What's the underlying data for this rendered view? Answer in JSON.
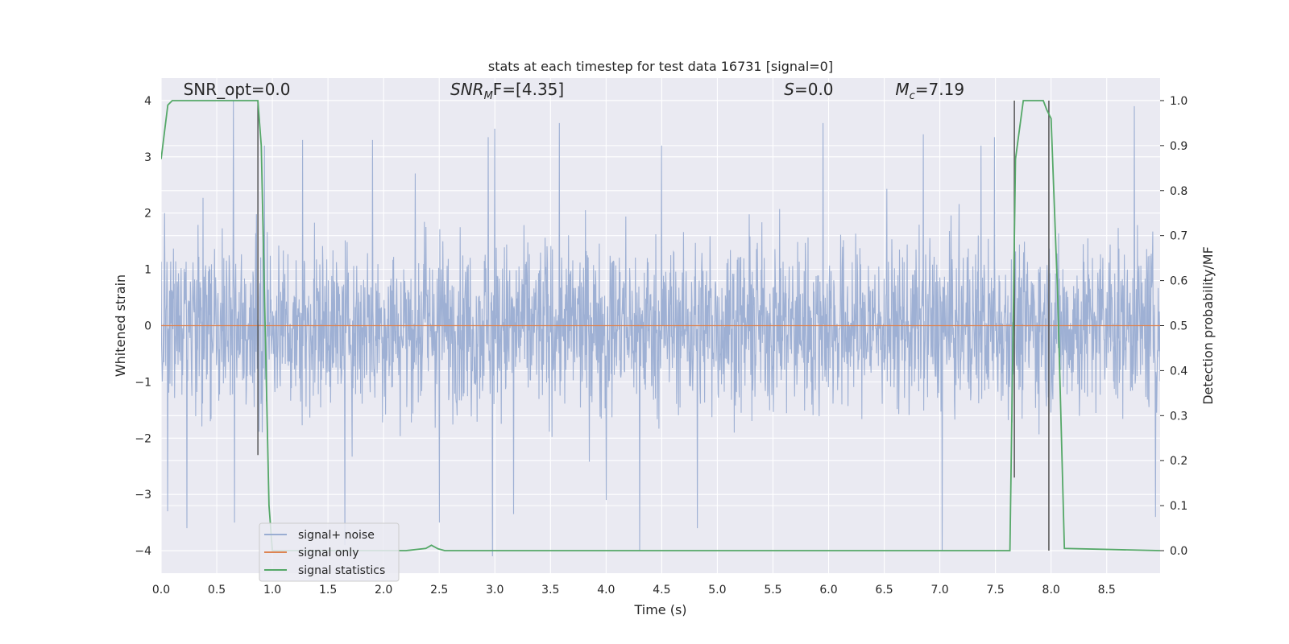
{
  "chart_data": {
    "type": "line",
    "title": "stats at each timestep for test data 16731 [signal=0]",
    "xlabel": "Time (s)",
    "ylabel": "Whitened strain",
    "y2label": "Detection probability/MF",
    "xlim": [
      0.0,
      8.98
    ],
    "ylim": [
      -4.4,
      4.4
    ],
    "y2lim": [
      -0.05,
      1.05
    ],
    "x_ticks": [
      0.0,
      0.5,
      1.0,
      1.5,
      2.0,
      2.5,
      3.0,
      3.5,
      4.0,
      4.5,
      5.0,
      5.5,
      6.0,
      6.5,
      7.0,
      7.5,
      8.0,
      8.5
    ],
    "x_tick_labels": [
      "0.0",
      "0.5",
      "1.0",
      "1.5",
      "2.0",
      "2.5",
      "3.0",
      "3.5",
      "4.0",
      "4.5",
      "5.0",
      "5.5",
      "6.0",
      "6.5",
      "7.0",
      "7.5",
      "8.0",
      "8.5"
    ],
    "y_ticks": [
      -4,
      -3,
      -2,
      -1,
      0,
      1,
      2,
      3,
      4
    ],
    "y_tick_labels": [
      "−4",
      "−3",
      "−2",
      "−1",
      "0",
      "1",
      "2",
      "3",
      "4"
    ],
    "y2_ticks": [
      0.0,
      0.1,
      0.2,
      0.3,
      0.4,
      0.5,
      0.6,
      0.7,
      0.8,
      0.9,
      1.0
    ],
    "y2_tick_labels": [
      "0.0",
      "0.1",
      "0.2",
      "0.3",
      "0.4",
      "0.5",
      "0.6",
      "0.7",
      "0.8",
      "0.9",
      "1.0"
    ],
    "grid": true,
    "legend_position": "bottom-left",
    "colors": {
      "background": "#eaeaf2",
      "grid": "#ffffff",
      "noise": "#9aadd2",
      "signal_only": "#dd8452",
      "statistics": "#55a868",
      "marker_lines": "#555555"
    },
    "series": [
      {
        "name": "signal+ noise",
        "kind": "noise",
        "x_range": [
          0.0,
          8.98
        ],
        "typical_envelope": [
          -2.6,
          2.6
        ],
        "peaks": [
          {
            "x": 0.65,
            "y": 4.0
          },
          {
            "x": 0.93,
            "y": 3.2
          },
          {
            "x": 1.27,
            "y": 3.3
          },
          {
            "x": 1.9,
            "y": 3.3
          },
          {
            "x": 2.94,
            "y": 3.35
          },
          {
            "x": 3.0,
            "y": 3.5
          },
          {
            "x": 3.58,
            "y": 3.6
          },
          {
            "x": 4.5,
            "y": 3.2
          },
          {
            "x": 5.95,
            "y": 3.6
          },
          {
            "x": 6.85,
            "y": 3.4
          },
          {
            "x": 7.37,
            "y": 3.2
          },
          {
            "x": 7.49,
            "y": 3.35
          },
          {
            "x": 8.75,
            "y": 3.9
          }
        ],
        "troughs": [
          {
            "x": 0.06,
            "y": -3.3
          },
          {
            "x": 0.23,
            "y": -3.6
          },
          {
            "x": 0.66,
            "y": -3.5
          },
          {
            "x": 1.65,
            "y": -3.9
          },
          {
            "x": 2.5,
            "y": -3.5
          },
          {
            "x": 2.98,
            "y": -4.1
          },
          {
            "x": 3.17,
            "y": -3.35
          },
          {
            "x": 4.0,
            "y": -3.1
          },
          {
            "x": 4.3,
            "y": -4.0
          },
          {
            "x": 4.82,
            "y": -3.6
          },
          {
            "x": 7.02,
            "y": -4.0
          },
          {
            "x": 8.94,
            "y": -3.4
          }
        ]
      },
      {
        "name": "signal only",
        "kind": "signal",
        "x": [
          0.0,
          8.98
        ],
        "y": [
          0.0,
          0.0
        ]
      },
      {
        "name": "signal statistics",
        "kind": "stat",
        "x": [
          0.0,
          0.06,
          0.1,
          0.15,
          0.3,
          0.6,
          0.87,
          0.9,
          0.97,
          1.0,
          1.05,
          2.2,
          2.38,
          2.43,
          2.49,
          2.55,
          7.0,
          7.63,
          7.68,
          7.75,
          7.93,
          7.96,
          8.0,
          8.06,
          8.12,
          8.98
        ],
        "y": [
          0.87,
          0.99,
          1.0,
          1.0,
          1.0,
          1.0,
          1.0,
          0.9,
          0.1,
          0.0,
          0.0,
          0.0,
          0.005,
          0.012,
          0.004,
          0.0,
          0.0,
          0.0,
          0.87,
          1.0,
          1.0,
          0.98,
          0.96,
          0.56,
          0.005,
          0.0
        ]
      }
    ],
    "vertical_lines": [
      {
        "x": 0.87,
        "ymin": -2.3,
        "ymax": 4.0
      },
      {
        "x": 7.67,
        "ymin": -2.7,
        "ymax": 4.0
      },
      {
        "x": 7.98,
        "ymin": -4.0,
        "ymax": 4.0
      }
    ],
    "annotations": [
      {
        "key": "snr_opt",
        "text": "SNR_opt=0.0",
        "x": 0.2,
        "y": 4.1
      },
      {
        "key": "snr_mf",
        "text": "SNR_MF=[4.35]",
        "x": 2.6,
        "y": 4.1
      },
      {
        "key": "s_value",
        "text": "S=0.0",
        "x": 5.6,
        "y": 4.1
      },
      {
        "key": "m_chirp",
        "text": "M_c=7.19",
        "x": 6.6,
        "y": 4.1
      }
    ]
  },
  "labels": {
    "snr_opt": "SNR_opt=0.0",
    "snr_mf_main": "SNR",
    "snr_mf_sub": "M",
    "snr_mf_rest": "F=[4.35]",
    "s_main": "S",
    "s_rest": "=0.0",
    "mc_main": "M",
    "mc_sub": "c",
    "mc_rest": "=7.19"
  }
}
